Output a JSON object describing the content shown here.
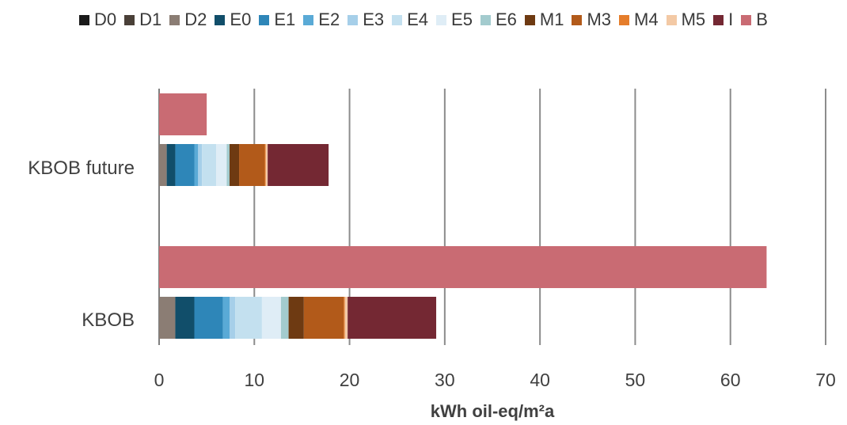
{
  "chart_data": {
    "type": "bar",
    "orientation": "horizontal",
    "stacked": true,
    "xlabel": "kWh oil-eq/m²a",
    "xlim": [
      0,
      70
    ],
    "xticks": [
      0,
      10,
      20,
      30,
      40,
      50,
      60,
      70
    ],
    "grid": "vertical",
    "legend_position": "top",
    "categories": [
      "KBOB future",
      "KBOB"
    ],
    "stack_series": [
      {
        "name": "D0",
        "color": "#1a1a1a",
        "values": [
          0,
          0
        ]
      },
      {
        "name": "D1",
        "color": "#4a4038",
        "values": [
          0,
          0
        ]
      },
      {
        "name": "D2",
        "color": "#8b7d74",
        "values": [
          0.8,
          1.7
        ]
      },
      {
        "name": "E0",
        "color": "#114e6a",
        "values": [
          0.9,
          2.0
        ]
      },
      {
        "name": "E1",
        "color": "#2e86b8",
        "values": [
          2.0,
          3.0
        ]
      },
      {
        "name": "E2",
        "color": "#5aaad6",
        "values": [
          0.4,
          0.7
        ]
      },
      {
        "name": "E3",
        "color": "#a6cfe9",
        "values": [
          0.4,
          0.6
        ]
      },
      {
        "name": "E4",
        "color": "#c3e0ef",
        "values": [
          1.5,
          2.8
        ]
      },
      {
        "name": "E5",
        "color": "#dfedf6",
        "values": [
          1.1,
          2.0
        ]
      },
      {
        "name": "E6",
        "color": "#a3cbce",
        "values": [
          0.3,
          0.8
        ]
      },
      {
        "name": "M1",
        "color": "#6e3a12",
        "values": [
          1.0,
          1.6
        ]
      },
      {
        "name": "M3",
        "color": "#b25a1a",
        "values": [
          2.7,
          4.2
        ]
      },
      {
        "name": "M4",
        "color": "#e57d2b",
        "values": [
          0.1,
          0.1
        ]
      },
      {
        "name": "M5",
        "color": "#f3c9a5",
        "values": [
          0.2,
          0.3
        ]
      },
      {
        "name": "I",
        "color": "#742833",
        "values": [
          6.4,
          9.3
        ]
      }
    ],
    "series_B": {
      "name": "B",
      "color": "#c96b73",
      "values": [
        5.0,
        63.8
      ]
    }
  }
}
